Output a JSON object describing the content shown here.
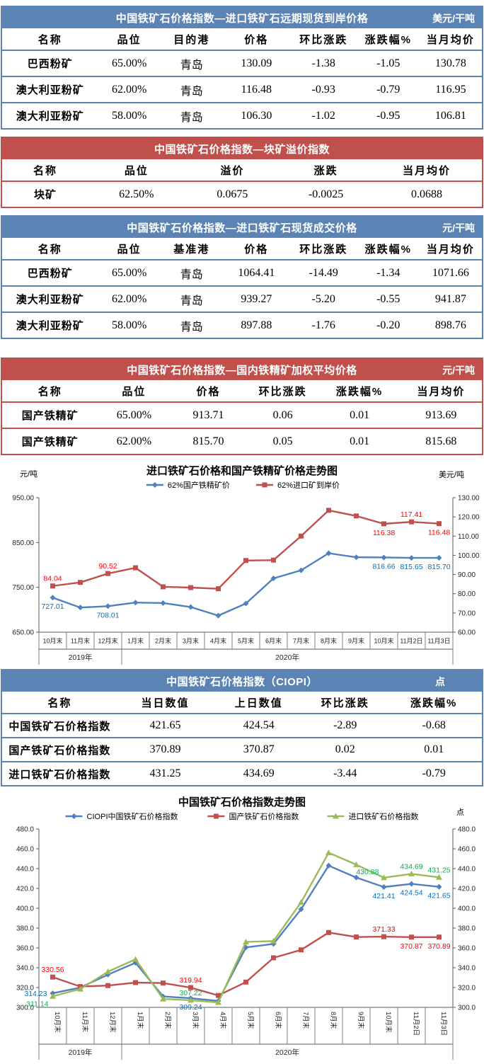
{
  "colors": {
    "table_header_blue": "#5B84B4",
    "table_header_red": "#BF504C",
    "band_title_text": "#FFFFFF",
    "series_blue": "#4F81BD",
    "series_red": "#C0504D",
    "series_green": "#9BBB59",
    "label_blue": "#0070C0",
    "label_red": "#FF0000",
    "label_green": "#00B050"
  },
  "tables": [
    {
      "id": "forward-spot",
      "title": "中国铁矿石价格指数—进口铁矿石远期现货到岸价格",
      "unit": "美元/干吨",
      "columns": [
        "名称",
        "品位",
        "目的港",
        "价格",
        "环比涨跌",
        "涨跌幅%",
        "当月均价"
      ],
      "rows": [
        [
          "巴西粉矿",
          "65.00%",
          "青岛",
          "130.09",
          "-1.38",
          "-1.05",
          "130.78"
        ],
        [
          "澳大利亚粉矿",
          "62.00%",
          "青岛",
          "116.48",
          "-0.93",
          "-0.79",
          "116.95"
        ],
        [
          "澳大利亚粉矿",
          "58.00%",
          "青岛",
          "106.30",
          "-1.02",
          "-0.95",
          "106.81"
        ]
      ]
    },
    {
      "id": "lump-premium",
      "title": "中国铁矿石价格指数—块矿溢价指数",
      "unit": "",
      "columns": [
        "名称",
        "品位",
        "溢价",
        "涨跌",
        "当月均价"
      ],
      "rows": [
        [
          "块矿",
          "62.50%",
          "0.0675",
          "-0.0025",
          "0.0688"
        ]
      ]
    },
    {
      "id": "spot-deal",
      "title": "中国铁矿石价格指数—进口铁矿石现货成交价格",
      "unit": "元/干吨",
      "columns": [
        "名称",
        "品位",
        "基准港",
        "价格",
        "环比涨跌",
        "涨跌幅%",
        "当月均价"
      ],
      "rows": [
        [
          "巴西粉矿",
          "65.00%",
          "青岛",
          "1064.41",
          "-14.49",
          "-1.34",
          "1071.66"
        ],
        [
          "澳大利亚粉矿",
          "62.00%",
          "青岛",
          "939.27",
          "-5.20",
          "-0.55",
          "941.87"
        ],
        [
          "澳大利亚粉矿",
          "58.00%",
          "青岛",
          "897.88",
          "-1.76",
          "-0.20",
          "898.76"
        ]
      ]
    },
    {
      "id": "domestic-concentrate",
      "title": "中国铁矿石价格指数—国内铁精矿加权平均价格",
      "unit": "元/干吨",
      "columns": [
        "名称",
        "品位",
        "价格",
        "环比涨跌",
        "涨跌幅%",
        "当月均价"
      ],
      "rows": [
        [
          "国产铁精矿",
          "65.00%",
          "913.71",
          "0.06",
          "0.01",
          "913.69"
        ],
        [
          "国产铁精矿",
          "62.00%",
          "815.70",
          "0.05",
          "0.01",
          "815.68"
        ]
      ]
    },
    {
      "id": "ciopi",
      "title": "中国铁矿石价格指数（CIOPI）",
      "unit": "点",
      "columns": [
        "名称",
        "当日数值",
        "上日数值",
        "环比涨跌",
        "涨跌幅%"
      ],
      "rows": [
        [
          "中国铁矿石价格指数",
          "421.65",
          "424.54",
          "-2.89",
          "-0.68"
        ],
        [
          "国产铁矿石价格指数",
          "370.89",
          "370.87",
          "0.02",
          "0.01"
        ],
        [
          "进口铁矿石价格指数",
          "431.25",
          "434.69",
          "-3.44",
          "-0.79"
        ]
      ]
    }
  ],
  "chart_data": [
    {
      "type": "line",
      "title": "进口铁矿石价格和国产铁精矿价格走势图",
      "legend_position": "top",
      "grid": false,
      "categories": [
        "10月末",
        "11月末",
        "12月末",
        "1月末",
        "2月末",
        "3月末",
        "4月末",
        "5月末",
        "6月末",
        "7月末",
        "8月末",
        "9月末",
        "10月末",
        "11月2日",
        "11月3日"
      ],
      "year_groups": [
        {
          "label": "2019年",
          "span": 3
        },
        {
          "label": "2020年",
          "span": 12
        }
      ],
      "left_axis": {
        "unit": "元/吨",
        "min": 650,
        "max": 950,
        "step": 100,
        "decimals": 2
      },
      "right_axis": {
        "unit": "美元/吨",
        "min": 60,
        "max": 130,
        "step": 10,
        "decimals": 2
      },
      "series": [
        {
          "name": "62%国产铁精矿价",
          "axis": "left",
          "marker": "diamond",
          "color": "#4F81BD",
          "label_color": "#0070C0",
          "values": [
            727.01,
            705,
            708.01,
            716,
            715,
            706,
            687,
            714,
            770,
            788,
            826,
            817,
            816.66,
            815.65,
            815.7
          ],
          "point_labels": [
            "727.01",
            "",
            "708.01",
            "",
            "",
            "",
            "",
            "",
            "",
            "",
            "",
            "",
            "816.66",
            "815.65",
            "815.70"
          ],
          "label_pos": [
            "below",
            "",
            "below",
            "",
            "",
            "",
            "",
            "",
            "",
            "",
            "",
            "",
            "below",
            "below",
            "below"
          ]
        },
        {
          "name": "62%进口矿到岸价",
          "axis": "right",
          "marker": "square",
          "color": "#C0504D",
          "label_color": "#FF0000",
          "values": [
            84.04,
            85.9,
            90.52,
            93.5,
            83.6,
            83.2,
            82.6,
            97.3,
            97.5,
            110,
            123.4,
            120.5,
            116.38,
            117.41,
            116.48
          ],
          "point_labels": [
            "84.04",
            "",
            "90.52",
            "",
            "",
            "",
            "",
            "",
            "",
            "",
            "",
            "",
            "116.38",
            "117.41",
            "116.48"
          ],
          "label_pos": [
            "above",
            "",
            "above",
            "",
            "",
            "",
            "",
            "",
            "",
            "",
            "",
            "",
            "below",
            "above",
            "below"
          ]
        }
      ]
    },
    {
      "type": "line",
      "title": "中国铁矿石价格指数走势图",
      "legend_position": "top",
      "grid": false,
      "categories": [
        "10月末",
        "11月末",
        "12月末",
        "1月末",
        "2月末",
        "3月末",
        "4月末",
        "5月末",
        "6月末",
        "7月末",
        "8月末",
        "9月末",
        "10月末",
        "11月2日",
        "11月3日"
      ],
      "year_groups": [
        {
          "label": "2019年",
          "span": 3
        },
        {
          "label": "2020年",
          "span": 12
        }
      ],
      "left_axis": {
        "unit": "",
        "min": 300,
        "max": 480,
        "step": 20,
        "decimals": 1
      },
      "right_axis": {
        "unit": "点",
        "min": 300,
        "max": 480,
        "step": 20,
        "decimals": 1
      },
      "series": [
        {
          "name": "CIOPI中国铁矿石价格指数",
          "axis": "left",
          "marker": "diamond",
          "color": "#4F81BD",
          "label_color": "#0070C0",
          "values": [
            314.23,
            320,
            333,
            345,
            311,
            309.24,
            306.5,
            360.5,
            364,
            399,
            443,
            431,
            421.41,
            424.54,
            421.65
          ],
          "point_labels": [
            "314.23",
            "",
            "",
            "",
            "",
            "309.24",
            "",
            "",
            "",
            "",
            "",
            "",
            "421.41",
            "424.54",
            "421.65"
          ],
          "label_pos": [
            "left",
            "",
            "",
            "",
            "",
            "below",
            "",
            "",
            "",
            "",
            "",
            "",
            "below",
            "below",
            "below"
          ]
        },
        {
          "name": "国产铁矿石价格指数",
          "axis": "left",
          "marker": "square",
          "color": "#C0504D",
          "label_color": "#FF0000",
          "values": [
            330.56,
            321,
            322,
            325,
            324.5,
            319.94,
            312,
            325.5,
            350,
            358,
            375.5,
            371,
            371.33,
            370.87,
            370.89
          ],
          "point_labels": [
            "330.56",
            "",
            "",
            "",
            "",
            "319.94",
            "",
            "",
            "",
            "",
            "",
            "",
            "371.33",
            "370.87",
            "370.89"
          ],
          "label_pos": [
            "above",
            "",
            "",
            "",
            "",
            "above",
            "",
            "",
            "",
            "",
            "",
            "",
            "above",
            "below",
            "below"
          ]
        },
        {
          "name": "进口铁矿石价格指数",
          "axis": "left",
          "marker": "triangle",
          "color": "#9BBB59",
          "label_color": "#00B050",
          "values": [
            311.14,
            318.5,
            336,
            348.5,
            308.5,
            307.22,
            305,
            366,
            366.9,
            406,
            456,
            444,
            430.88,
            434.69,
            431.25
          ],
          "point_labels": [
            "311.14",
            "",
            "",
            "",
            "",
            "307.22",
            "",
            "",
            "",
            "",
            "",
            "",
            "430.88",
            "434.69",
            "431.25"
          ],
          "label_pos": [
            "left-below",
            "",
            "",
            "",
            "",
            "above",
            "",
            "",
            "",
            "",
            "",
            "",
            "left-above",
            "above",
            "above"
          ]
        }
      ]
    }
  ]
}
